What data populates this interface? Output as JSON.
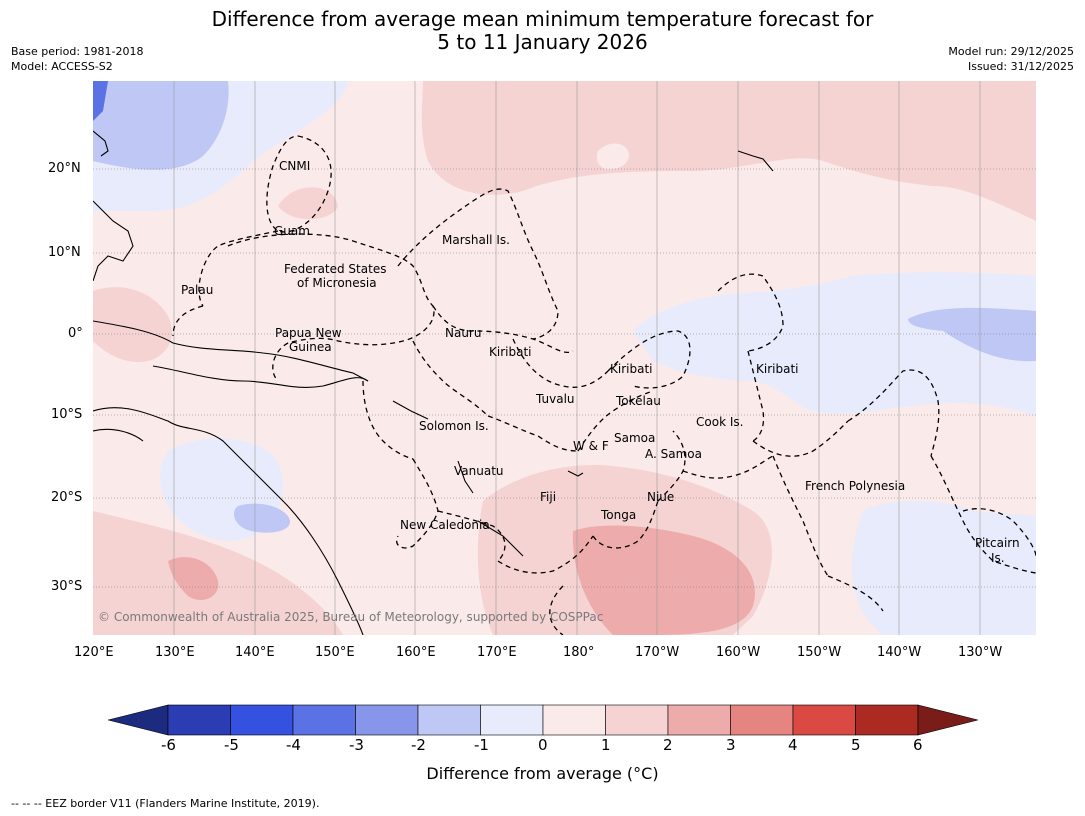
{
  "title_line1": "Difference from average mean minimum temperature forecast for",
  "title_line2": "5 to 11 January 2026",
  "base_period": "Base period: 1981-2018",
  "model": "Model: ACCESS-S2",
  "model_run": "Model run: 29/12/2025",
  "issued": "Issued: 31/12/2025",
  "copyright": "© Commonwealth of Australia 2025, Bureau of Meteorology, supported by COSPPac",
  "lon_ticks": [
    "120°E",
    "130°E",
    "140°E",
    "150°E",
    "160°E",
    "170°E",
    "180°",
    "170°W",
    "160°W",
    "150°W",
    "140°W",
    "130°W"
  ],
  "lat_ticks": [
    "20°N",
    "10°N",
    "0°",
    "10°S",
    "20°S",
    "30°S"
  ],
  "regions": {
    "cnmi": "CNMI",
    "guam": "Guam",
    "marshall": "Marshall Is.",
    "fsm1": "Federated States",
    "fsm2": "of Micronesia",
    "palau": "Palau",
    "png1": "Papua New",
    "png2": "Guinea",
    "nauru": "Nauru",
    "kiribati_w": "Kiribati",
    "kiribati_c": "Kiribati",
    "kiribati_e": "Kiribati",
    "tuvalu": "Tuvalu",
    "tokelau": "Tokelau",
    "cook": "Cook Is.",
    "solomon": "Solomon Is.",
    "samoa": "Samoa",
    "wf": "W & F",
    "asamoa": "A. Samoa",
    "vanuatu": "Vanuatu",
    "fiji": "Fiji",
    "niue": "Niue",
    "tonga": "Tonga",
    "newcal": "New Caledonia",
    "frpoly": "French Polynesia",
    "pitcairn1": "Pitcairn",
    "pitcairn2": "Is."
  },
  "colorbar": {
    "title": "Difference from average (°C)",
    "labels": [
      "-6",
      "-5",
      "-4",
      "-3",
      "-2",
      "-1",
      "0",
      "1",
      "2",
      "3",
      "4",
      "5",
      "6"
    ],
    "colors": [
      "#1b2b80",
      "#2a3db3",
      "#3551e0",
      "#5b72e5",
      "#8796eb",
      "#bfc7f4",
      "#e8ebfc",
      "#fbeaea",
      "#f5d3d3",
      "#edabab",
      "#e68480",
      "#da4a42",
      "#ab2a22",
      "#7a1c18"
    ]
  },
  "footnote": "--  --  -- EEZ border V11 (Flanders Marine Institute, 2019)."
}
